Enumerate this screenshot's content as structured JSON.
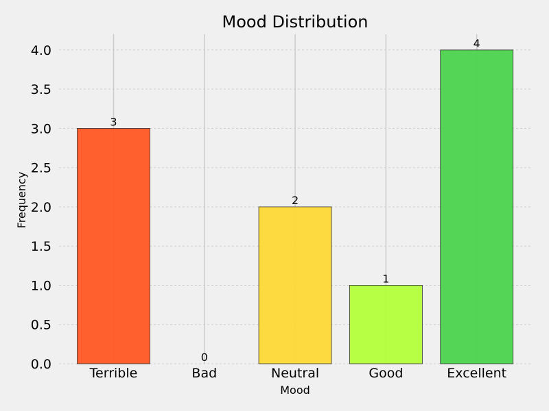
{
  "chart_data": {
    "type": "bar",
    "title": "Mood Distribution",
    "xlabel": "Mood",
    "ylabel": "Frequency",
    "categories": [
      "Terrible",
      "Bad",
      "Neutral",
      "Good",
      "Excellent"
    ],
    "values": [
      3,
      0,
      2,
      1,
      4
    ],
    "data_labels": [
      "3",
      "0",
      "2",
      "1",
      "4"
    ],
    "colors": [
      "#ff5722",
      "#ff9800",
      "#fdd835",
      "#b2ff3b",
      "#4cd34c"
    ],
    "ylim": [
      0,
      4.2
    ],
    "yticks": [
      0.0,
      0.5,
      1.0,
      1.5,
      2.0,
      2.5,
      3.0,
      3.5,
      4.0
    ],
    "ytick_labels": [
      "0.0",
      "0.5",
      "1.0",
      "1.5",
      "2.0",
      "2.5",
      "3.0",
      "3.5",
      "4.0"
    ],
    "grid": true
  }
}
